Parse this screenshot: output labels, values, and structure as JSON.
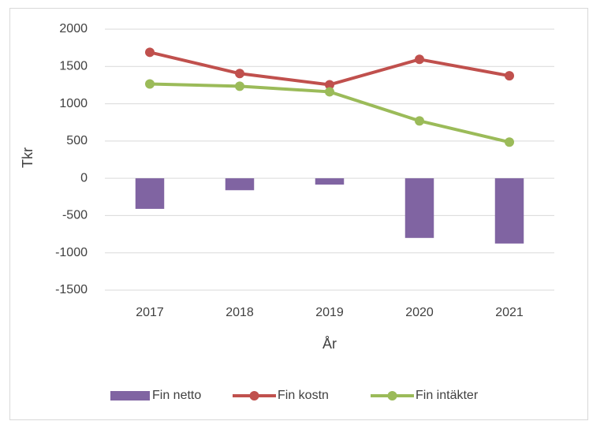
{
  "chart_data": {
    "type": "combo",
    "ylabel": "Tkr",
    "xlabel": "År",
    "categories": [
      "2017",
      "2018",
      "2019",
      "2020",
      "2021"
    ],
    "series": [
      {
        "name": "Fin netto",
        "type": "bar",
        "color": "#8064a2",
        "values": [
          -410,
          -160,
          -85,
          -800,
          -875
        ]
      },
      {
        "name": "Fin kostn",
        "type": "line",
        "color": "#c0504d",
        "values": [
          1690,
          1405,
          1255,
          1595,
          1375
        ]
      },
      {
        "name": "Fin intäkter",
        "type": "line",
        "color": "#9bbb59",
        "values": [
          1265,
          1235,
          1160,
          770,
          485
        ]
      }
    ],
    "ylim": [
      -1500,
      2000
    ],
    "yticks": [
      -1500,
      -1000,
      -500,
      0,
      500,
      1000,
      1500,
      2000
    ],
    "grid": true,
    "legend": "bottom"
  }
}
